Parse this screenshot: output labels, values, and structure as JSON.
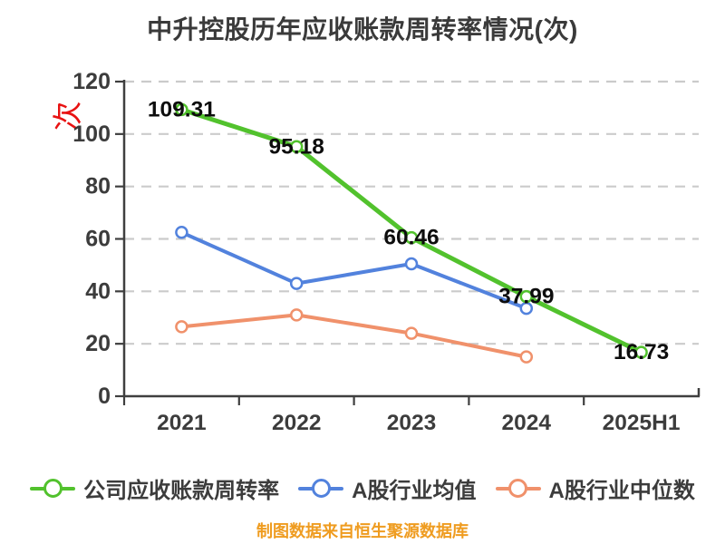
{
  "chart_data": {
    "type": "line",
    "title": "中升控股历年应收账款周转率情况(次)",
    "y_unit": "次",
    "categories": [
      "2021",
      "2022",
      "2023",
      "2024",
      "2025H1"
    ],
    "ylim": [
      0,
      120
    ],
    "yticks": [
      0,
      20,
      40,
      60,
      80,
      100,
      120
    ],
    "grid": "horizontal-dashed",
    "legend_position": "bottom",
    "series": [
      {
        "name": "公司应收账款周转率",
        "key": "company",
        "values": [
          109.31,
          95.18,
          60.46,
          37.99,
          16.73
        ],
        "point_labels": [
          "109.31",
          "95.18",
          "60.46",
          "37.99",
          "16.73"
        ]
      },
      {
        "name": "A股行业均值",
        "key": "industry_mean",
        "values": [
          62.5,
          43,
          50.5,
          33.5
        ],
        "point_labels": []
      },
      {
        "name": "A股行业中位数",
        "key": "industry_median",
        "values": [
          26.5,
          31,
          24,
          15
        ],
        "point_labels": []
      }
    ]
  },
  "colors": {
    "company": "#52c22d",
    "industry_mean": "#5282dd",
    "industry_median": "#f0916b",
    "grid": "#cbcbcb",
    "axis": "#3f3f3f",
    "tick_text": "#3c3c3c",
    "point_label": "#0d0d0d",
    "title_text": "#3a3a3a",
    "y_unit": "#e81212",
    "footer_text": "#ef9c20",
    "marker_fill": "#ffffff",
    "background": "#ffffff"
  },
  "footer": {
    "note": "制图数据来自恒生聚源数据库"
  }
}
